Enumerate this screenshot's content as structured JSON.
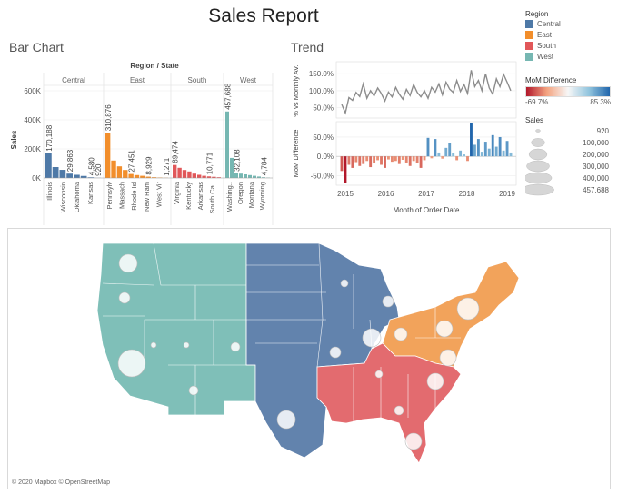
{
  "title": "Sales Report",
  "bar_section": {
    "title": "Bar Chart",
    "header": "Region / State",
    "y_label": "Sales"
  },
  "trend_section": {
    "title": "Trend",
    "top_label": "% vs Monthly AV..",
    "bottom_label": "MoM Difference",
    "x_label": "Month of Order Date"
  },
  "legend": {
    "region_title": "Region",
    "regions": [
      {
        "name": "Central",
        "color": "#4e79a7"
      },
      {
        "name": "East",
        "color": "#f28e2b"
      },
      {
        "name": "South",
        "color": "#e15759"
      },
      {
        "name": "West",
        "color": "#76b7b2"
      }
    ],
    "mom_title": "MoM Difference",
    "mom_min": "-69.7%",
    "mom_max": "85.3%",
    "sales_title": "Sales",
    "sales_sizes": [
      "920",
      "100,000",
      "200,000",
      "300,000",
      "400,000",
      "457,688"
    ]
  },
  "map": {
    "attribution": "© 2020 Mapbox © OpenStreetMap"
  },
  "chart_data": [
    {
      "type": "bar",
      "title": "Bar Chart",
      "ylabel": "Sales",
      "ylim": [
        0,
        700000
      ],
      "yticks": [
        "0K",
        "200K",
        "400K",
        "600K"
      ],
      "regions": [
        {
          "name": "Central",
          "color": "#4e79a7",
          "categories": [
            "Illinois",
            "",
            "Wisconsin",
            "",
            "Oklahoma",
            "",
            "Kansas",
            ""
          ],
          "values": [
            170188,
            75000,
            56000,
            29863,
            22000,
            14000,
            4580,
            920
          ],
          "labels": [
            "170,188",
            "",
            "",
            "29,863",
            "",
            "",
            "4,580",
            "920"
          ],
          "ticklabels": [
            "Illinois",
            "Wisconsin",
            "Oklahoma",
            "Kansas"
          ]
        },
        {
          "name": "East",
          "color": "#f28e2b",
          "categories": [],
          "values": [
            310876,
            120000,
            80000,
            55000,
            27451,
            20000,
            15000,
            8929,
            5000,
            3000,
            1271
          ],
          "labels": [
            "310,876",
            "",
            "",
            "",
            "27,451",
            "",
            "",
            "8,929",
            "",
            "",
            "1,271"
          ],
          "ticklabels": [
            "Pennsylv",
            "Massach",
            "Rhode Isl",
            "New Ham",
            "West Vir"
          ]
        },
        {
          "name": "South",
          "color": "#e15759",
          "categories": [],
          "values": [
            89474,
            70000,
            55000,
            45000,
            30000,
            22000,
            15000,
            10771,
            8000,
            5000
          ],
          "labels": [
            "89,474",
            "",
            "",
            "",
            "",
            "",
            "",
            "10,771",
            "",
            ""
          ],
          "ticklabels": [
            "Virginia",
            "Kentucky",
            "Arkansas",
            "South Ca.."
          ]
        },
        {
          "name": "West",
          "color": "#76b7b2",
          "categories": [],
          "values": [
            457688,
            138000,
            32108,
            30000,
            25000,
            20000,
            15000,
            10000,
            4784,
            2000
          ],
          "labels": [
            "457,688",
            "",
            "32,108",
            "",
            "",
            "",
            "",
            "",
            "4,784",
            ""
          ],
          "ticklabels": [
            "Washing..",
            "Oregon",
            "Montana",
            "Wyoming"
          ]
        }
      ]
    },
    {
      "type": "line",
      "title": "Trend",
      "ylabel": "% vs Monthly AV..",
      "yticks": [
        "50.0%",
        "100.0%",
        "150.0%"
      ],
      "ylim": [
        20,
        185
      ],
      "x_ticks": [
        "2015",
        "2016",
        "2017",
        "2018",
        "2019"
      ],
      "values": [
        60,
        35,
        80,
        72,
        95,
        83,
        120,
        78,
        100,
        85,
        108,
        92,
        70,
        96,
        82,
        110,
        90,
        75,
        104,
        86,
        118,
        95,
        82,
        100,
        78,
        110,
        96,
        120,
        88,
        125,
        105,
        95,
        130,
        98,
        118,
        92,
        160,
        112,
        130,
        100,
        150,
        108,
        90,
        135,
        112,
        148,
        125,
        100
      ]
    },
    {
      "type": "bar",
      "title": "MoM Difference",
      "ylabel": "MoM Difference",
      "yticks": [
        "-50.0%",
        "0.0%",
        "50.0%"
      ],
      "ylim": [
        -75,
        90
      ],
      "x_ticks": [
        "2015",
        "2016",
        "2017",
        "2018",
        "2019"
      ],
      "values": [
        -38,
        -69.7,
        -22,
        -30,
        -15,
        -25,
        -20,
        -12,
        -28,
        -18,
        -10,
        -22,
        -30,
        -8,
        -14,
        -12,
        -20,
        -9,
        -16,
        -25,
        -12,
        -18,
        -30,
        -10,
        48,
        -5,
        45,
        10,
        -6,
        22,
        35,
        8,
        -10,
        15,
        5,
        -12,
        85.3,
        30,
        45,
        12,
        38,
        20,
        55,
        25,
        50,
        15,
        40,
        10
      ]
    }
  ]
}
